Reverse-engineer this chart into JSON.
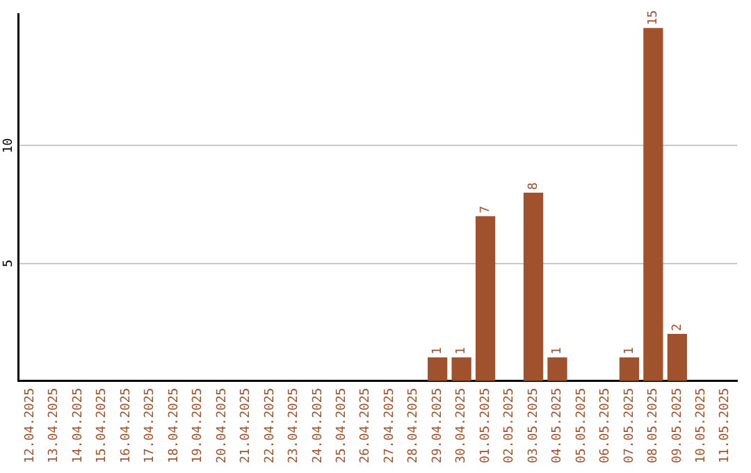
{
  "chart_data": {
    "type": "bar",
    "categories": [
      "12.04.2025",
      "13.04.2025",
      "14.04.2025",
      "15.04.2025",
      "16.04.2025",
      "17.04.2025",
      "18.04.2025",
      "19.04.2025",
      "20.04.2025",
      "21.04.2025",
      "22.04.2025",
      "23.04.2025",
      "24.04.2025",
      "25.04.2025",
      "26.04.2025",
      "27.04.2025",
      "28.04.2025",
      "29.04.2025",
      "30.04.2025",
      "01.05.2025",
      "02.05.2025",
      "03.05.2025",
      "04.05.2025",
      "05.05.2025",
      "06.05.2025",
      "07.05.2025",
      "08.05.2025",
      "09.05.2025",
      "10.05.2025",
      "11.05.2025"
    ],
    "values": [
      0,
      0,
      0,
      0,
      0,
      0,
      0,
      0,
      0,
      0,
      0,
      0,
      0,
      0,
      0,
      0,
      0,
      1,
      1,
      7,
      0,
      8,
      1,
      0,
      0,
      1,
      15,
      2,
      0,
      0
    ],
    "value_labels": [
      null,
      null,
      null,
      null,
      null,
      null,
      null,
      null,
      null,
      null,
      null,
      null,
      null,
      null,
      null,
      null,
      null,
      "1",
      "1",
      "7",
      null,
      "8",
      "1",
      null,
      null,
      "1",
      "15",
      "2",
      null,
      null
    ],
    "color": "#a0522d",
    "ylim": [
      0,
      15.6
    ],
    "yticks": [
      5,
      10
    ],
    "grid": "y",
    "legend": false
  }
}
